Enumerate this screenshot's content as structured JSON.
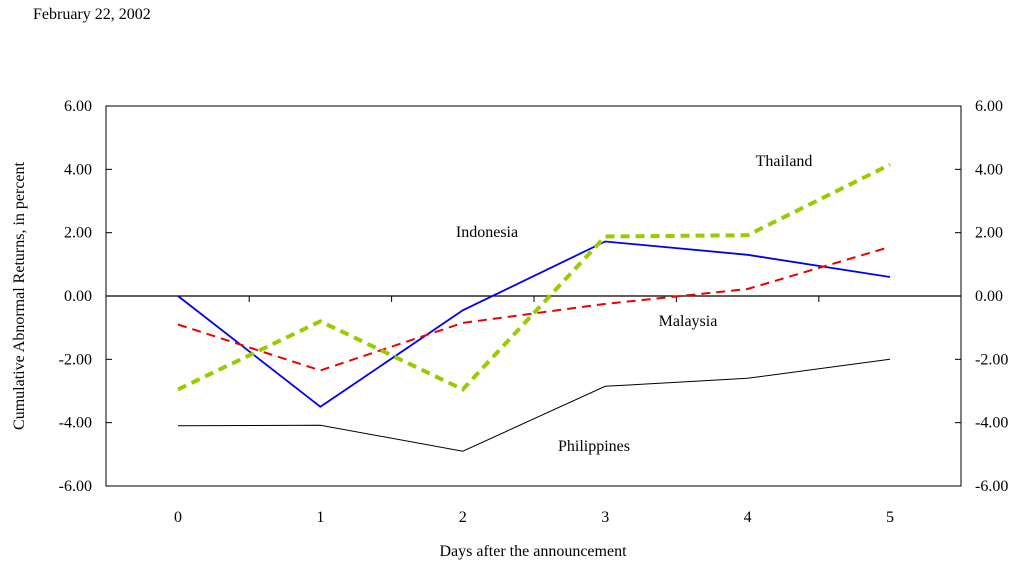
{
  "header": {
    "date": "February 22, 2002"
  },
  "chart_data": {
    "type": "line",
    "xlabel": "Days after the announcement",
    "ylabel": "Cumulative Abnormal Returns, in percent",
    "x": [
      0,
      1,
      2,
      3,
      4,
      5
    ],
    "x_tick_labels": [
      "0",
      "1",
      "2",
      "3",
      "4",
      "5"
    ],
    "ylim": [
      -6,
      6
    ],
    "y_tick_labels": [
      "6.00",
      "4.00",
      "2.00",
      "0.00",
      "-2.00",
      "-4.00",
      "-6.00"
    ],
    "grid": false,
    "right_axis_mirrors_left": true,
    "series": [
      {
        "name": "Indonesia",
        "color": "#0000ee",
        "style": "solid",
        "values": [
          0.0,
          -3.5,
          -0.45,
          1.72,
          1.3,
          0.6
        ]
      },
      {
        "name": "Malaysia",
        "color": "#ee0000",
        "style": "dashed",
        "values": [
          -0.9,
          -2.35,
          -0.85,
          -0.25,
          0.22,
          1.55
        ]
      },
      {
        "name": "Thailand",
        "color": "#99cc00",
        "style": "dotted-thick",
        "values": [
          -2.95,
          -0.8,
          -2.95,
          1.88,
          1.92,
          4.15
        ]
      },
      {
        "name": "Philippines",
        "color": "#000000",
        "style": "solid-thin",
        "values": [
          -4.1,
          -4.08,
          -4.9,
          -2.85,
          -2.6,
          -2.0
        ]
      }
    ]
  }
}
